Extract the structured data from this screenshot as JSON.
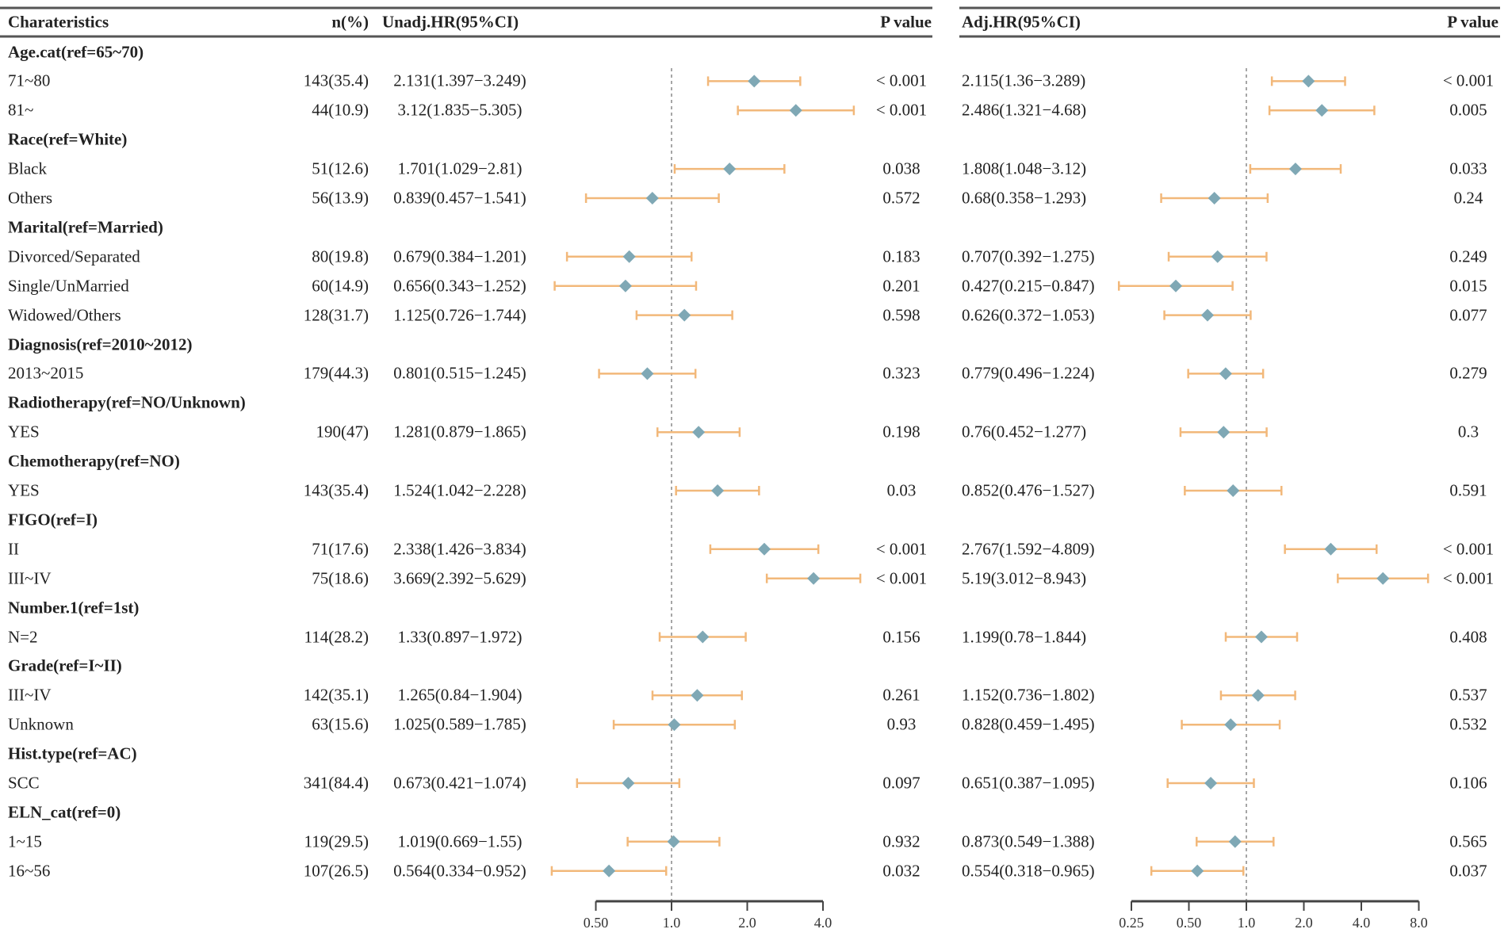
{
  "chart_data": {
    "type": "forest",
    "headers": {
      "characteristics": "Charateristics",
      "n": "n(%)",
      "unadj": "Unadj.HR(95%CI)",
      "p1": "P value",
      "adj": "Adj.HR(95%CI)",
      "p2": "P value"
    },
    "axis1": {
      "scale": "log2",
      "ticks": [
        0.5,
        1,
        2,
        4
      ],
      "tick_labels": [
        "0.50",
        "1.0",
        "2.0",
        "4.0"
      ],
      "reference": 1
    },
    "axis2": {
      "scale": "log2",
      "ticks": [
        0.25,
        0.5,
        1,
        2,
        4,
        8
      ],
      "tick_labels": [
        "0.25",
        "0.50",
        "1.0",
        "2.0",
        "4.0",
        "8.0"
      ],
      "reference": 1
    },
    "colors": {
      "ci": "#f2b87a",
      "point": "#7fa8b5",
      "ref_line": "#888888"
    },
    "rows": [
      {
        "group": "Age.cat(ref=65~70)"
      },
      {
        "label": "71~80",
        "n": "143(35.4)",
        "hr1": 2.131,
        "lo1": 1.397,
        "hi1": 3.249,
        "ci1": "2.131(1.397−3.249)",
        "p1": "< 0.001",
        "hr2": 2.115,
        "lo2": 1.36,
        "hi2": 3.289,
        "ci2": "2.115(1.36−3.289)",
        "p2": "< 0.001"
      },
      {
        "label": "81~",
        "n": "44(10.9)",
        "hr1": 3.12,
        "lo1": 1.835,
        "hi1": 5.305,
        "ci1": "3.12(1.835−5.305)",
        "p1": "< 0.001",
        "hr2": 2.486,
        "lo2": 1.321,
        "hi2": 4.68,
        "ci2": "2.486(1.321−4.68)",
        "p2": "0.005"
      },
      {
        "group": "Race(ref=White)"
      },
      {
        "label": "Black",
        "n": "51(12.6)",
        "hr1": 1.701,
        "lo1": 1.029,
        "hi1": 2.81,
        "ci1": "1.701(1.029−2.81)",
        "p1": "0.038",
        "hr2": 1.808,
        "lo2": 1.048,
        "hi2": 3.12,
        "ci2": "1.808(1.048−3.12)",
        "p2": "0.033"
      },
      {
        "label": "Others",
        "n": "56(13.9)",
        "hr1": 0.839,
        "lo1": 0.457,
        "hi1": 1.541,
        "ci1": "0.839(0.457−1.541)",
        "p1": "0.572",
        "hr2": 0.68,
        "lo2": 0.358,
        "hi2": 1.293,
        "ci2": "0.68(0.358−1.293)",
        "p2": "0.24"
      },
      {
        "group": "Marital(ref=Married)"
      },
      {
        "label": "Divorced/Separated",
        "n": "80(19.8)",
        "hr1": 0.679,
        "lo1": 0.384,
        "hi1": 1.201,
        "ci1": "0.679(0.384−1.201)",
        "p1": "0.183",
        "hr2": 0.707,
        "lo2": 0.392,
        "hi2": 1.275,
        "ci2": "0.707(0.392−1.275)",
        "p2": "0.249"
      },
      {
        "label": "Single/UnMarried",
        "n": "60(14.9)",
        "hr1": 0.656,
        "lo1": 0.343,
        "hi1": 1.252,
        "ci1": "0.656(0.343−1.252)",
        "p1": "0.201",
        "hr2": 0.427,
        "lo2": 0.215,
        "hi2": 0.847,
        "ci2": "0.427(0.215−0.847)",
        "p2": "0.015"
      },
      {
        "label": "Widowed/Others",
        "n": "128(31.7)",
        "hr1": 1.125,
        "lo1": 0.726,
        "hi1": 1.744,
        "ci1": "1.125(0.726−1.744)",
        "p1": "0.598",
        "hr2": 0.626,
        "lo2": 0.372,
        "hi2": 1.053,
        "ci2": "0.626(0.372−1.053)",
        "p2": "0.077"
      },
      {
        "group": "Diagnosis(ref=2010~2012)"
      },
      {
        "label": "2013~2015",
        "n": "179(44.3)",
        "hr1": 0.801,
        "lo1": 0.515,
        "hi1": 1.245,
        "ci1": "0.801(0.515−1.245)",
        "p1": "0.323",
        "hr2": 0.779,
        "lo2": 0.496,
        "hi2": 1.224,
        "ci2": "0.779(0.496−1.224)",
        "p2": "0.279"
      },
      {
        "group": "Radiotherapy(ref=NO/Unknown)"
      },
      {
        "label": "YES",
        "n": "190(47)",
        "hr1": 1.281,
        "lo1": 0.879,
        "hi1": 1.865,
        "ci1": "1.281(0.879−1.865)",
        "p1": "0.198",
        "hr2": 0.76,
        "lo2": 0.452,
        "hi2": 1.277,
        "ci2": "0.76(0.452−1.277)",
        "p2": "0.3"
      },
      {
        "group": "Chemotherapy(ref=NO)"
      },
      {
        "label": "YES",
        "n": "143(35.4)",
        "hr1": 1.524,
        "lo1": 1.042,
        "hi1": 2.228,
        "ci1": "1.524(1.042−2.228)",
        "p1": "0.03",
        "hr2": 0.852,
        "lo2": 0.476,
        "hi2": 1.527,
        "ci2": "0.852(0.476−1.527)",
        "p2": "0.591"
      },
      {
        "group": "FIGO(ref=I)"
      },
      {
        "label": "II",
        "n": "71(17.6)",
        "hr1": 2.338,
        "lo1": 1.426,
        "hi1": 3.834,
        "ci1": "2.338(1.426−3.834)",
        "p1": "< 0.001",
        "hr2": 2.767,
        "lo2": 1.592,
        "hi2": 4.809,
        "ci2": "2.767(1.592−4.809)",
        "p2": "< 0.001"
      },
      {
        "label": "III~IV",
        "n": "75(18.6)",
        "hr1": 3.669,
        "lo1": 2.392,
        "hi1": 5.629,
        "ci1": "3.669(2.392−5.629)",
        "p1": "< 0.001",
        "hr2": 5.19,
        "lo2": 3.012,
        "hi2": 8.943,
        "ci2": "5.19(3.012−8.943)",
        "p2": "< 0.001"
      },
      {
        "group": "Number.1(ref=1st)"
      },
      {
        "label": "N=2",
        "n": "114(28.2)",
        "hr1": 1.33,
        "lo1": 0.897,
        "hi1": 1.972,
        "ci1": "1.33(0.897−1.972)",
        "p1": "0.156",
        "hr2": 1.199,
        "lo2": 0.78,
        "hi2": 1.844,
        "ci2": "1.199(0.78−1.844)",
        "p2": "0.408"
      },
      {
        "group": "Grade(ref=I~II)"
      },
      {
        "label": "III~IV",
        "n": "142(35.1)",
        "hr1": 1.265,
        "lo1": 0.84,
        "hi1": 1.904,
        "ci1": "1.265(0.84−1.904)",
        "p1": "0.261",
        "hr2": 1.152,
        "lo2": 0.736,
        "hi2": 1.802,
        "ci2": "1.152(0.736−1.802)",
        "p2": "0.537"
      },
      {
        "label": "Unknown",
        "n": "63(15.6)",
        "hr1": 1.025,
        "lo1": 0.589,
        "hi1": 1.785,
        "ci1": "1.025(0.589−1.785)",
        "p1": "0.93",
        "hr2": 0.828,
        "lo2": 0.459,
        "hi2": 1.495,
        "ci2": "0.828(0.459−1.495)",
        "p2": "0.532"
      },
      {
        "group": "Hist.type(ref=AC)"
      },
      {
        "label": "SCC",
        "n": "341(84.4)",
        "hr1": 0.673,
        "lo1": 0.421,
        "hi1": 1.074,
        "ci1": "0.673(0.421−1.074)",
        "p1": "0.097",
        "hr2": 0.651,
        "lo2": 0.387,
        "hi2": 1.095,
        "ci2": "0.651(0.387−1.095)",
        "p2": "0.106"
      },
      {
        "group": "ELN_cat(ref=0)"
      },
      {
        "label": "1~15",
        "n": "119(29.5)",
        "hr1": 1.019,
        "lo1": 0.669,
        "hi1": 1.55,
        "ci1": "1.019(0.669−1.55)",
        "p1": "0.932",
        "hr2": 0.873,
        "lo2": 0.549,
        "hi2": 1.388,
        "ci2": "0.873(0.549−1.388)",
        "p2": "0.565"
      },
      {
        "label": "16~56",
        "n": "107(26.5)",
        "hr1": 0.564,
        "lo1": 0.334,
        "hi1": 0.952,
        "ci1": "0.564(0.334−0.952)",
        "p1": "0.032",
        "hr2": 0.554,
        "lo2": 0.318,
        "hi2": 0.965,
        "ci2": "0.554(0.318−0.965)",
        "p2": "0.037"
      }
    ]
  }
}
